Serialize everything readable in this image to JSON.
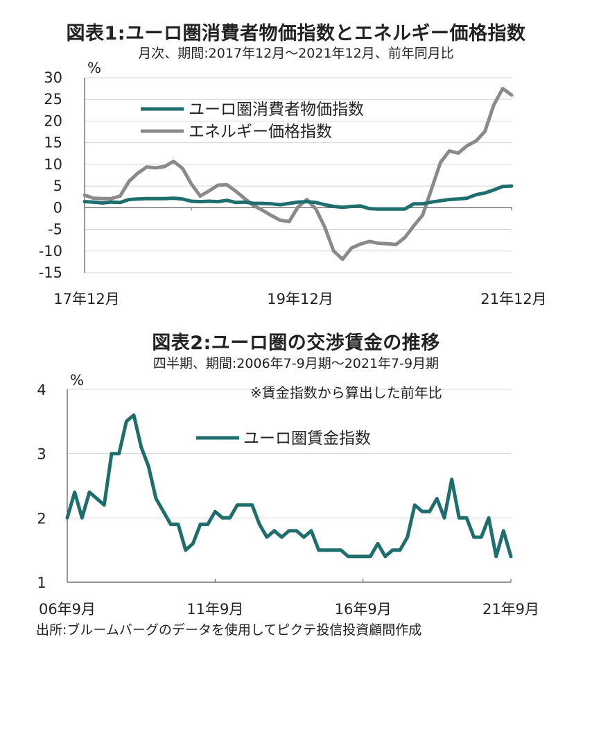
{
  "colors": {
    "cpi": "#1f6e6e",
    "energy": "#8a8a8a",
    "grid": "#d4d4d4",
    "axis": "#555555"
  },
  "source": "出所:ブルームバーグのデータを使用してピクテ投信投資顧問作成",
  "chart_data": [
    {
      "type": "line",
      "title": "図表1:ユーロ圏消費者物価指数とエネルギー価格指数",
      "subtitle": "月次、期間:2017年12月～2021年12月、前年同月比",
      "unit": "%",
      "ylim": [
        -15,
        30
      ],
      "yticks": [
        "30",
        "25",
        "20",
        "15",
        "10",
        "5",
        "0",
        "-5",
        "-10",
        "-15"
      ],
      "xtick_labels": [
        "17年12月",
        "19年12月",
        "21年12月"
      ],
      "grid": true,
      "legend_position": "top-left",
      "series": [
        {
          "name": "ユーロ圏消費者物価指数",
          "color": "#1f6e6e",
          "values": [
            1.4,
            1.3,
            1.1,
            1.3,
            1.2,
            1.9,
            2.0,
            2.1,
            2.1,
            2.1,
            2.2,
            2.0,
            1.5,
            1.4,
            1.5,
            1.4,
            1.7,
            1.2,
            1.3,
            1.0,
            1.0,
            0.9,
            0.7,
            1.0,
            1.3,
            1.4,
            1.2,
            0.7,
            0.3,
            0.1,
            0.3,
            0.4,
            -0.2,
            -0.3,
            -0.3,
            -0.3,
            -0.3,
            0.9,
            0.9,
            1.3,
            1.6,
            1.9,
            2.0,
            2.2,
            3.0,
            3.4,
            4.1,
            4.9,
            5.0
          ]
        },
        {
          "name": "エネルギー価格指数",
          "color": "#8a8a8a",
          "values": [
            2.9,
            2.2,
            2.1,
            2.1,
            2.7,
            6.1,
            8.0,
            9.4,
            9.2,
            9.5,
            10.7,
            9.1,
            5.5,
            2.7,
            3.9,
            5.2,
            5.3,
            3.8,
            2.1,
            0.5,
            -0.6,
            -1.8,
            -2.9,
            -3.2,
            0.2,
            1.9,
            -0.3,
            -4.5,
            -10.0,
            -11.9,
            -9.3,
            -8.4,
            -7.8,
            -8.2,
            -8.3,
            -8.5,
            -6.9,
            -4.2,
            -1.7,
            4.3,
            10.4,
            13.1,
            12.6,
            14.3,
            15.4,
            17.6,
            23.7,
            27.5,
            26.0
          ]
        }
      ]
    },
    {
      "type": "line",
      "title": "図表2:ユーロ圏の交渉賃金の推移",
      "subtitle": "四半期、期間:2006年7-9月期～2021年7-9月期",
      "unit": "%",
      "note": "※賃金指数から算出した前年比",
      "ylim": [
        1,
        4
      ],
      "yticks": [
        "4",
        "3",
        "2",
        "1"
      ],
      "xtick_labels": [
        "06年9月",
        "11年9月",
        "16年9月",
        "21年9月"
      ],
      "grid": true,
      "legend_position": "top-center",
      "series": [
        {
          "name": "ユーロ圏賃金指数",
          "color": "#1f6e6e",
          "values": [
            2.0,
            2.4,
            2.0,
            2.4,
            2.3,
            2.2,
            3.0,
            3.0,
            3.5,
            3.6,
            3.1,
            2.8,
            2.3,
            2.1,
            1.9,
            1.9,
            1.5,
            1.6,
            1.9,
            1.9,
            2.1,
            2.0,
            2.0,
            2.2,
            2.2,
            2.2,
            1.9,
            1.7,
            1.8,
            1.7,
            1.8,
            1.8,
            1.7,
            1.8,
            1.5,
            1.5,
            1.5,
            1.5,
            1.4,
            1.4,
            1.4,
            1.4,
            1.6,
            1.4,
            1.5,
            1.5,
            1.7,
            2.2,
            2.1,
            2.1,
            2.3,
            2.0,
            2.6,
            2.0,
            2.0,
            1.7,
            1.7,
            2.0,
            1.4,
            1.8,
            1.4
          ]
        }
      ]
    }
  ]
}
